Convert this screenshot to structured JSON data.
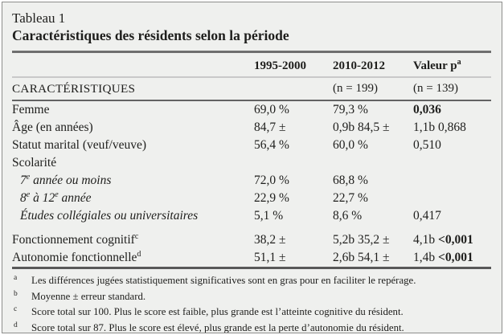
{
  "page": {
    "background_color": "#eff0ee",
    "text_color": "#1e1e1c"
  },
  "table": {
    "title": "Tableau 1",
    "subtitle": "Caractéristiques des résidents selon la période",
    "column_headers": {
      "period1": "1995-2000",
      "period2": "2010-2012",
      "pvalue": "Valeur p",
      "pvalue_sup": "a"
    },
    "subheader": {
      "label": "CARACTÉRISTIQUES",
      "n_period2": "(n = 199)",
      "n_pvalue": "(n = 139)"
    },
    "rows": [
      {
        "name": "femme",
        "label_parts": [
          {
            "t": "Femme"
          }
        ],
        "c1": "69,0 %",
        "c2": "79,3 %",
        "c3_parts": [
          {
            "t": "0,036",
            "b": true
          }
        ]
      },
      {
        "name": "age",
        "label_parts": [
          {
            "t": "Âge (en années)"
          }
        ],
        "c1": "84,7 ±",
        "c2": "0,9b 84,5 ±",
        "c3_parts": [
          {
            "t": "1,1b 0,868"
          }
        ]
      },
      {
        "name": "statut-marital",
        "label_parts": [
          {
            "t": "Statut marital (veuf/veuve)"
          }
        ],
        "c1": "56,4 %",
        "c2": "60,0 %",
        "c3_parts": [
          {
            "t": "0,510"
          }
        ]
      },
      {
        "name": "scolarite",
        "label_parts": [
          {
            "t": "Scolarité"
          }
        ],
        "c1": "",
        "c2": "",
        "c3_parts": []
      },
      {
        "name": "scolarite-7e-ou-moins",
        "indent": true,
        "label_parts": [
          {
            "t": "7"
          },
          {
            "s": "e"
          },
          {
            "t": " année ou moins"
          }
        ],
        "c1": "72,0 %",
        "c2": "68,8 %",
        "c3_parts": []
      },
      {
        "name": "scolarite-8e-a-12e",
        "indent": true,
        "label_parts": [
          {
            "t": "8"
          },
          {
            "s": "e"
          },
          {
            "t": " à 12"
          },
          {
            "s": "e"
          },
          {
            "t": " année"
          }
        ],
        "c1": "22,9 %",
        "c2": "22,7 %",
        "c3_parts": []
      },
      {
        "name": "scolarite-etudes-collegiales",
        "indent": true,
        "label_parts": [
          {
            "t": "Études collégiales ou universitaires"
          }
        ],
        "c1": "5,1 %",
        "c2": "8,6 %",
        "c3_parts": [
          {
            "t": "0,417"
          }
        ]
      },
      {
        "name": "fonctionnement-cognitif",
        "gap": true,
        "label_parts": [
          {
            "t": "Fonctionnement cognitif"
          },
          {
            "s": "c"
          }
        ],
        "c1": "38,2 ±",
        "c2": "5,2b 35,2 ±",
        "c3_parts": [
          {
            "t": "4,1b "
          },
          {
            "t": "<0,001",
            "b": true
          }
        ]
      },
      {
        "name": "autonomie-fonctionnelle",
        "label_parts": [
          {
            "t": "Autonomie fonctionnelle"
          },
          {
            "s": "d"
          }
        ],
        "c1": "51,1 ±",
        "c2": "2,6b 54,1 ±",
        "c3_parts": [
          {
            "t": "1,4b "
          },
          {
            "t": "<0,001",
            "b": true
          }
        ]
      }
    ],
    "footnotes": [
      {
        "marker": "a",
        "text": "Les différences jugées statistiquement significatives sont en gras pour en faciliter le repérage."
      },
      {
        "marker": "b",
        "text": "Moyenne ± erreur standard."
      },
      {
        "marker": "c",
        "text": "Score total sur 100. Plus le score est faible, plus grande est l’atteinte cognitive du résident."
      },
      {
        "marker": "d",
        "text": "Score total sur 87. Plus le score est élevé, plus grande est la perte d’autonomie du résident."
      }
    ]
  }
}
